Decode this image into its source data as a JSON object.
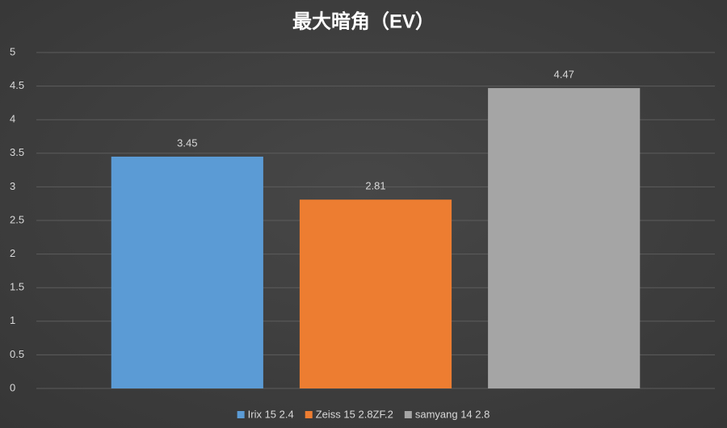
{
  "chart_data": {
    "type": "bar",
    "title": "最大暗角（EV）",
    "categories": [
      null
    ],
    "series": [
      {
        "name": "Irix 15 2.4",
        "color": "#5b9bd5",
        "values": [
          3.45
        ]
      },
      {
        "name": "Zeiss 15 2.8ZF.2",
        "color": "#ed7d31",
        "values": [
          2.81
        ]
      },
      {
        "name": "samyang 14 2.8",
        "color": "#a5a5a5",
        "values": [
          4.47
        ]
      }
    ],
    "ylim": [
      0,
      5
    ],
    "yticks": [
      0,
      0.5,
      1,
      1.5,
      2,
      2.5,
      3,
      3.5,
      4,
      4.5,
      5
    ],
    "grid": true,
    "legend": "bottom"
  }
}
